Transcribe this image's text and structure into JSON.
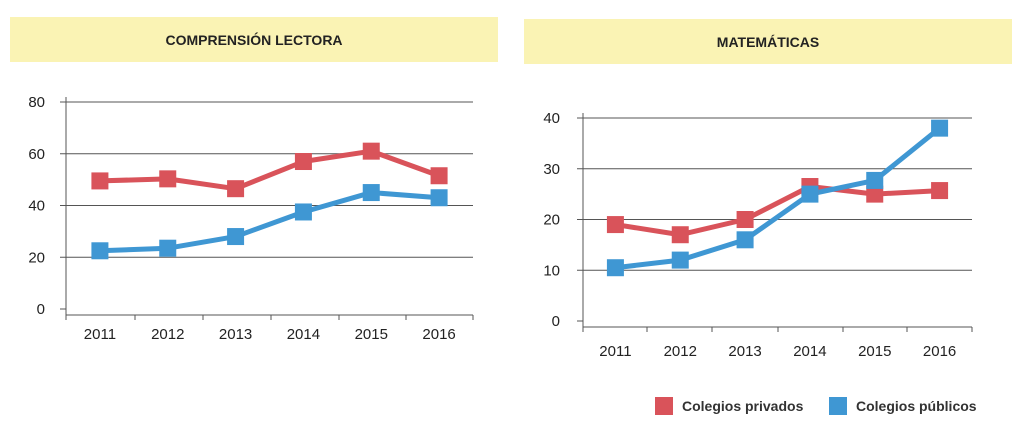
{
  "colors": {
    "privados": "#d9535a",
    "publicos": "#3f97d3",
    "grid": "#555555",
    "banner": "#faf3b4"
  },
  "legend": {
    "privados": "Colegios privados",
    "publicos": "Colegios públicos"
  },
  "chart_data": [
    {
      "type": "line",
      "title": "COMPRENSIÓN LECTORA",
      "categories": [
        "2011",
        "2012",
        "2013",
        "2014",
        "2015",
        "2016"
      ],
      "yticks": [
        "0",
        "20",
        "40",
        "60",
        "80"
      ],
      "ylim": [
        0,
        80
      ],
      "grid": true,
      "legend_position": "bottom-right",
      "series": [
        {
          "name": "Colegios privados",
          "values": [
            49.5,
            50.3,
            46.5,
            57,
            61,
            51.5
          ]
        },
        {
          "name": "Colegios públicos",
          "values": [
            22.5,
            23.5,
            28,
            37.5,
            45,
            43
          ]
        }
      ]
    },
    {
      "type": "line",
      "title": "MATEMÁTICAS",
      "categories": [
        "2011",
        "2012",
        "2013",
        "2014",
        "2015",
        "2016"
      ],
      "yticks": [
        "0",
        "10",
        "20",
        "30",
        "40"
      ],
      "ylim": [
        0,
        40
      ],
      "grid": true,
      "legend_position": "bottom-right",
      "series": [
        {
          "name": "Colegios privados",
          "values": [
            19,
            17,
            20,
            26.5,
            25,
            25.7
          ]
        },
        {
          "name": "Colegios públicos",
          "values": [
            10.5,
            12,
            16,
            25,
            27.7,
            38
          ]
        }
      ]
    }
  ]
}
